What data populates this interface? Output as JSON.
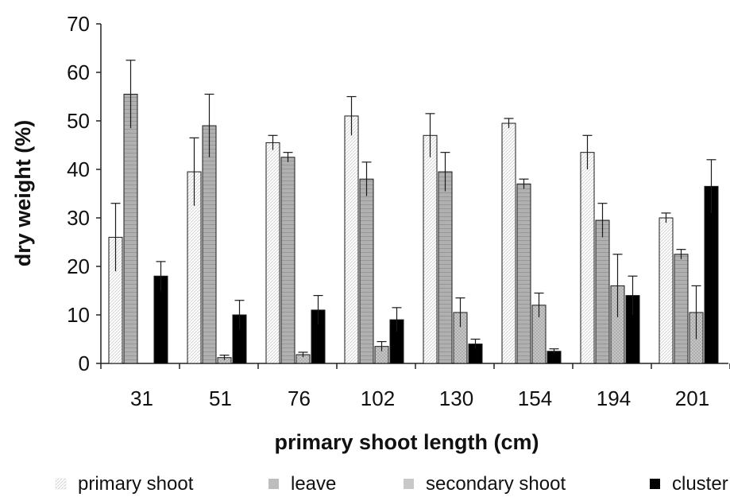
{
  "chart_data": {
    "type": "bar",
    "title": "",
    "xlabel": "primary shoot length (cm)",
    "ylabel": "dry weight (%)",
    "ylim": [
      0,
      70
    ],
    "yticks": [
      0,
      10,
      20,
      30,
      40,
      50,
      60,
      70
    ],
    "categories": [
      "31",
      "51",
      "76",
      "102",
      "130",
      "154",
      "194",
      "201"
    ],
    "series": [
      {
        "name": "primary shoot",
        "values": [
          26,
          39.5,
          45.5,
          51,
          47,
          49.5,
          43.5,
          30
        ],
        "errors": [
          7,
          7,
          1.5,
          4,
          4.5,
          1,
          3.5,
          1
        ],
        "color": "#ffffff"
      },
      {
        "name": "leave",
        "values": [
          55.5,
          49,
          42.5,
          38,
          39.5,
          37,
          29.5,
          22.5
        ],
        "errors": [
          7,
          6.5,
          1,
          3.5,
          4,
          1,
          3.5,
          1
        ],
        "color": "#b4b4b4"
      },
      {
        "name": "secondary shoot",
        "values": [
          0,
          1.2,
          1.8,
          3.5,
          10.5,
          12,
          16,
          10.5
        ],
        "errors": [
          0,
          0.5,
          0.5,
          1,
          3,
          2.5,
          6.5,
          5.5
        ],
        "color": "#c8c8c8"
      },
      {
        "name": "cluster",
        "values": [
          18,
          10,
          11,
          9,
          4,
          2.5,
          14,
          36.5
        ],
        "errors": [
          3,
          3,
          3,
          2.5,
          1,
          0.5,
          4,
          5.5
        ],
        "color": "#000000"
      }
    ],
    "legend_position": "bottom",
    "grid": false
  }
}
